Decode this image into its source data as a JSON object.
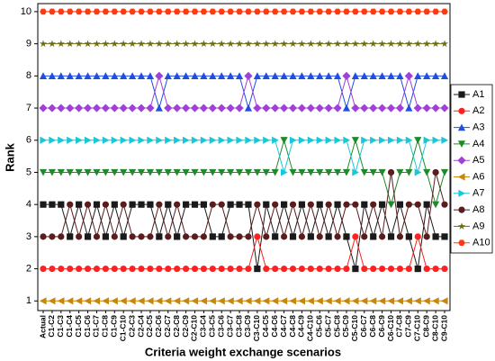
{
  "chart_data": {
    "type": "line",
    "x_label": "Criteria weight exchange scenarios",
    "y_label": "Rank",
    "categories": [
      "Actual",
      "C1-C2",
      "C1-C3",
      "C1-C4",
      "C1-C5",
      "C1-C6",
      "C1-C7",
      "C1-C8",
      "C1-C9",
      "C1-C10",
      "C2-C3",
      "C2-C4",
      "C2-C5",
      "C2-C6",
      "C2-C7",
      "C2-C8",
      "C2-C9",
      "C2-C10",
      "C3-C4",
      "C3-C5",
      "C3-C6",
      "C3-C7",
      "C3-C8",
      "C3-C9",
      "C3-C10",
      "C4-C5",
      "C4-C6",
      "C4-C7",
      "C4-C8",
      "C4-C9",
      "C4-C10",
      "C5-C6",
      "C5-C7",
      "C5-C8",
      "C5-C9",
      "C5-C10",
      "C6-C7",
      "C6-C8",
      "C6-C9",
      "C6-C10",
      "C7-C8",
      "C7-C9",
      "C7-C10",
      "C8-C9",
      "C8-C10",
      "C9-C10"
    ],
    "ylim": [
      0.7,
      10.25
    ],
    "yticks": [
      1,
      2,
      3,
      4,
      5,
      6,
      7,
      8,
      9,
      10
    ],
    "legend": "right",
    "series": [
      {
        "name": "A1",
        "color": "#1a1a1a",
        "marker": "square",
        "values": [
          4,
          4,
          4,
          3,
          4,
          3,
          4,
          3,
          4,
          3,
          4,
          4,
          4,
          3,
          4,
          3,
          4,
          4,
          4,
          3,
          3,
          4,
          4,
          4,
          2,
          4,
          3,
          4,
          3,
          4,
          3,
          4,
          3,
          4,
          3,
          2,
          4,
          3,
          4,
          3,
          4,
          3,
          2,
          4,
          3,
          3
        ]
      },
      {
        "name": "A2",
        "color": "#ff2020",
        "marker": "circle",
        "values": [
          2,
          2,
          2,
          2,
          2,
          2,
          2,
          2,
          2,
          2,
          2,
          2,
          2,
          2,
          2,
          2,
          2,
          2,
          2,
          2,
          2,
          2,
          2,
          2,
          3,
          2,
          2,
          2,
          2,
          2,
          2,
          2,
          2,
          2,
          2,
          3,
          2,
          2,
          2,
          2,
          2,
          2,
          3,
          2,
          2,
          2
        ]
      },
      {
        "name": "A3",
        "color": "#1f4fe0",
        "marker": "triangle-up",
        "values": [
          8,
          8,
          8,
          8,
          8,
          8,
          8,
          8,
          8,
          8,
          8,
          8,
          8,
          7,
          8,
          8,
          8,
          8,
          8,
          8,
          8,
          8,
          8,
          7,
          8,
          8,
          8,
          8,
          8,
          8,
          8,
          8,
          8,
          8,
          7,
          8,
          8,
          8,
          8,
          8,
          8,
          7,
          8,
          8,
          8,
          8
        ]
      },
      {
        "name": "A4",
        "color": "#1f8a2a",
        "marker": "triangle-down",
        "values": [
          5,
          5,
          5,
          5,
          5,
          5,
          5,
          5,
          5,
          5,
          5,
          5,
          5,
          5,
          5,
          5,
          5,
          5,
          5,
          5,
          5,
          5,
          5,
          5,
          5,
          5,
          5,
          6,
          5,
          5,
          5,
          5,
          5,
          5,
          5,
          6,
          5,
          5,
          5,
          4,
          5,
          5,
          6,
          5,
          4,
          5
        ]
      },
      {
        "name": "A5",
        "color": "#a040d8",
        "marker": "diamond",
        "values": [
          7,
          7,
          7,
          7,
          7,
          7,
          7,
          7,
          7,
          7,
          7,
          7,
          7,
          8,
          7,
          7,
          7,
          7,
          7,
          7,
          7,
          7,
          7,
          8,
          7,
          7,
          7,
          7,
          7,
          7,
          7,
          7,
          7,
          7,
          8,
          7,
          7,
          7,
          7,
          7,
          7,
          8,
          7,
          7,
          7,
          7
        ]
      },
      {
        "name": "A6",
        "color": "#c8860a",
        "marker": "triangle-left",
        "values": [
          1,
          1,
          1,
          1,
          1,
          1,
          1,
          1,
          1,
          1,
          1,
          1,
          1,
          1,
          1,
          1,
          1,
          1,
          1,
          1,
          1,
          1,
          1,
          1,
          1,
          1,
          1,
          1,
          1,
          1,
          1,
          1,
          1,
          1,
          1,
          1,
          1,
          1,
          1,
          1,
          1,
          1,
          1,
          1,
          1,
          1
        ]
      },
      {
        "name": "A7",
        "color": "#18c8d8",
        "marker": "triangle-right",
        "values": [
          6,
          6,
          6,
          6,
          6,
          6,
          6,
          6,
          6,
          6,
          6,
          6,
          6,
          6,
          6,
          6,
          6,
          6,
          6,
          6,
          6,
          6,
          6,
          6,
          6,
          6,
          6,
          5,
          6,
          6,
          6,
          6,
          6,
          6,
          6,
          5,
          6,
          6,
          6,
          6,
          6,
          6,
          5,
          6,
          6,
          6
        ]
      },
      {
        "name": "A8",
        "color": "#5a1c1c",
        "marker": "circle",
        "values": [
          3,
          3,
          3,
          4,
          3,
          4,
          3,
          4,
          3,
          4,
          3,
          3,
          3,
          4,
          3,
          4,
          3,
          3,
          3,
          4,
          4,
          3,
          3,
          3,
          4,
          3,
          4,
          3,
          4,
          3,
          4,
          3,
          4,
          3,
          4,
          4,
          3,
          4,
          3,
          5,
          3,
          4,
          4,
          3,
          5,
          4
        ]
      },
      {
        "name": "A9",
        "color": "#6b6b10",
        "marker": "star",
        "values": [
          9,
          9,
          9,
          9,
          9,
          9,
          9,
          9,
          9,
          9,
          9,
          9,
          9,
          9,
          9,
          9,
          9,
          9,
          9,
          9,
          9,
          9,
          9,
          9,
          9,
          9,
          9,
          9,
          9,
          9,
          9,
          9,
          9,
          9,
          9,
          9,
          9,
          9,
          9,
          9,
          9,
          9,
          9,
          9,
          9,
          9
        ]
      },
      {
        "name": "A10",
        "color": "#ff3a10",
        "marker": "hexagon",
        "values": [
          10,
          10,
          10,
          10,
          10,
          10,
          10,
          10,
          10,
          10,
          10,
          10,
          10,
          10,
          10,
          10,
          10,
          10,
          10,
          10,
          10,
          10,
          10,
          10,
          10,
          10,
          10,
          10,
          10,
          10,
          10,
          10,
          10,
          10,
          10,
          10,
          10,
          10,
          10,
          10,
          10,
          10,
          10,
          10,
          10,
          10
        ]
      }
    ]
  }
}
